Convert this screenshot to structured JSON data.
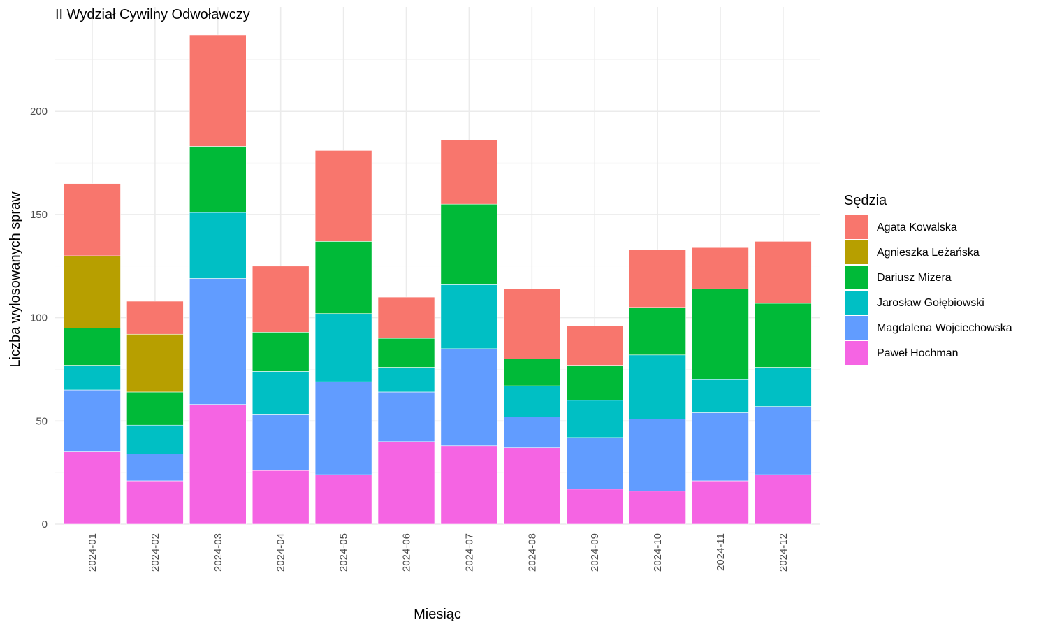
{
  "chart_data": {
    "type": "bar",
    "stacked": true,
    "title": "II Wydział Cywilny Odwoławczy",
    "xlabel": "Miesiąc",
    "ylabel": "Liczba wylosowanych spraw",
    "ylim": [
      0,
      245
    ],
    "yticks": [
      0,
      50,
      100,
      150,
      200
    ],
    "grid": true,
    "legend": {
      "title": "Sędzia",
      "position": "right"
    },
    "categories": [
      "2024-01",
      "2024-02",
      "2024-03",
      "2024-04",
      "2024-05",
      "2024-06",
      "2024-07",
      "2024-08",
      "2024-09",
      "2024-10",
      "2024-11",
      "2024-12"
    ],
    "series": [
      {
        "name": "Paweł Hochman",
        "color": "#F564E3",
        "values": [
          35,
          21,
          58,
          26,
          24,
          40,
          38,
          37,
          17,
          16,
          21,
          24
        ]
      },
      {
        "name": "Magdalena Wojciechowska",
        "color": "#619CFF",
        "values": [
          30,
          13,
          61,
          27,
          45,
          24,
          47,
          15,
          25,
          35,
          33,
          33
        ]
      },
      {
        "name": "Jarosław Gołębiowski",
        "color": "#00BFC4",
        "values": [
          12,
          14,
          32,
          21,
          33,
          12,
          31,
          15,
          18,
          31,
          16,
          19
        ]
      },
      {
        "name": "Dariusz Mizera",
        "color": "#00BA38",
        "values": [
          18,
          16,
          32,
          19,
          35,
          14,
          39,
          13,
          17,
          23,
          44,
          31
        ]
      },
      {
        "name": "Agnieszka Leżańska",
        "color": "#B79F00",
        "values": [
          35,
          28,
          0,
          0,
          0,
          0,
          0,
          0,
          0,
          0,
          0,
          0
        ]
      },
      {
        "name": "Agata Kowalska",
        "color": "#F8766D",
        "values": [
          35,
          16,
          54,
          32,
          44,
          20,
          31,
          34,
          19,
          28,
          20,
          30
        ]
      }
    ],
    "legend_order": [
      "Agata Kowalska",
      "Agnieszka Leżańska",
      "Dariusz Mizera",
      "Jarosław Gołębiowski",
      "Magdalena Wojciechowska",
      "Paweł Hochman"
    ]
  }
}
